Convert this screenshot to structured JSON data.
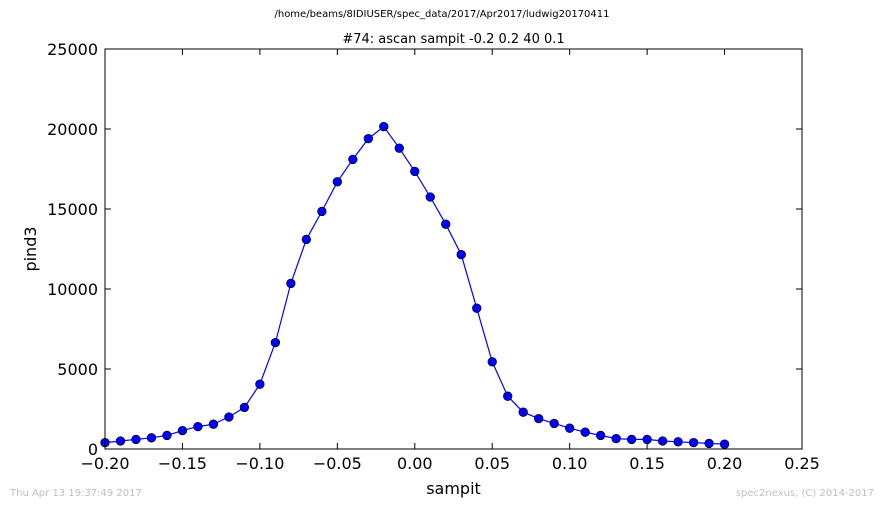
{
  "figure": {
    "suptitle": "/home/beams/8IDIUSER/spec_data/2017/Apr2017/ludwig20170411",
    "footer_left": "Thu Apr 13 19:37:49 2017",
    "footer_right": "spec2nexus, (C) 2014-2017"
  },
  "chart_data": {
    "type": "line",
    "title": "#74: ascan  sampit -0.2 0.2  40 0.1",
    "xlabel": "sampit",
    "ylabel": "pind3",
    "xlim": [
      -0.2,
      0.25
    ],
    "ylim": [
      0,
      25000
    ],
    "xticks": [
      -0.2,
      -0.15,
      -0.1,
      -0.05,
      0.0,
      0.05,
      0.1,
      0.15,
      0.2,
      0.25
    ],
    "xtick_labels": [
      "−0.20",
      "−0.15",
      "−0.10",
      "−0.05",
      "0.00",
      "0.05",
      "0.10",
      "0.15",
      "0.20",
      "0.25"
    ],
    "yticks": [
      0,
      5000,
      10000,
      15000,
      20000,
      25000
    ],
    "ytick_labels": [
      "0",
      "5000",
      "10000",
      "15000",
      "20000",
      "25000"
    ],
    "grid": false,
    "line_color": "#0000ff",
    "marker": "circle",
    "series": [
      {
        "x": [
          -0.2,
          -0.19,
          -0.18,
          -0.17,
          -0.16,
          -0.15,
          -0.14,
          -0.13,
          -0.12,
          -0.11,
          -0.1,
          -0.09,
          -0.08,
          -0.07,
          -0.06,
          -0.05,
          -0.04,
          -0.03,
          -0.02,
          -0.01,
          0.0,
          0.01,
          0.02,
          0.03,
          0.04,
          0.05,
          0.06,
          0.07,
          0.08,
          0.09,
          0.1,
          0.11,
          0.12,
          0.13,
          0.14,
          0.15,
          0.16,
          0.17,
          0.18,
          0.19,
          0.2
        ],
        "y": [
          400,
          500,
          600,
          700,
          850,
          1150,
          1400,
          1550,
          2000,
          2600,
          4050,
          6650,
          10350,
          13100,
          14850,
          16700,
          18100,
          19400,
          20150,
          18800,
          17350,
          15750,
          14050,
          12150,
          8800,
          5450,
          3300,
          2300,
          1900,
          1600,
          1300,
          1050,
          850,
          650,
          600,
          600,
          500,
          450,
          400,
          350,
          300
        ]
      }
    ]
  }
}
